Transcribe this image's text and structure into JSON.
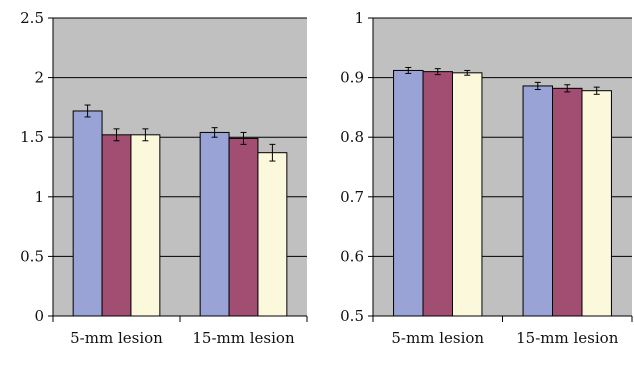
{
  "chart_data": [
    {
      "type": "bar",
      "title": "",
      "xlabel": "",
      "ylabel": "",
      "ylim": [
        0,
        2.5
      ],
      "yticks": [
        0,
        0.5,
        1,
        1.5,
        2,
        2.5
      ],
      "ytick_labels": [
        "0",
        "0.5",
        "1",
        "1.5",
        "2",
        "2.5"
      ],
      "grid": true,
      "categories": [
        "5-mm lesion",
        "15-mm lesion"
      ],
      "series": [
        {
          "color": "#9aa3d6",
          "values": [
            1.72,
            1.54
          ],
          "errors": [
            0.05,
            0.04
          ]
        },
        {
          "color": "#a24e72",
          "values": [
            1.52,
            1.49
          ],
          "errors": [
            0.05,
            0.05
          ]
        },
        {
          "color": "#fbf8dc",
          "values": [
            1.52,
            1.37
          ],
          "errors": [
            0.05,
            0.07
          ]
        }
      ]
    },
    {
      "type": "bar",
      "title": "",
      "xlabel": "",
      "ylabel": "",
      "ylim": [
        0.5,
        1
      ],
      "yticks": [
        0.5,
        0.6,
        0.7,
        0.8,
        0.9,
        1
      ],
      "ytick_labels": [
        "0.5",
        "0.6",
        "0.7",
        "0.8",
        "0.9",
        "1"
      ],
      "grid": true,
      "categories": [
        "5-mm lesion",
        "15-mm lesion"
      ],
      "series": [
        {
          "color": "#9aa3d6",
          "values": [
            0.912,
            0.886
          ],
          "errors": [
            0.005,
            0.006
          ]
        },
        {
          "color": "#a24e72",
          "values": [
            0.91,
            0.882
          ],
          "errors": [
            0.005,
            0.006
          ]
        },
        {
          "color": "#fbf8dc",
          "values": [
            0.908,
            0.878
          ],
          "errors": [
            0.004,
            0.006
          ]
        }
      ]
    }
  ],
  "colors": {
    "plot_background": "#c0c0c0",
    "gridline": "#000000"
  }
}
